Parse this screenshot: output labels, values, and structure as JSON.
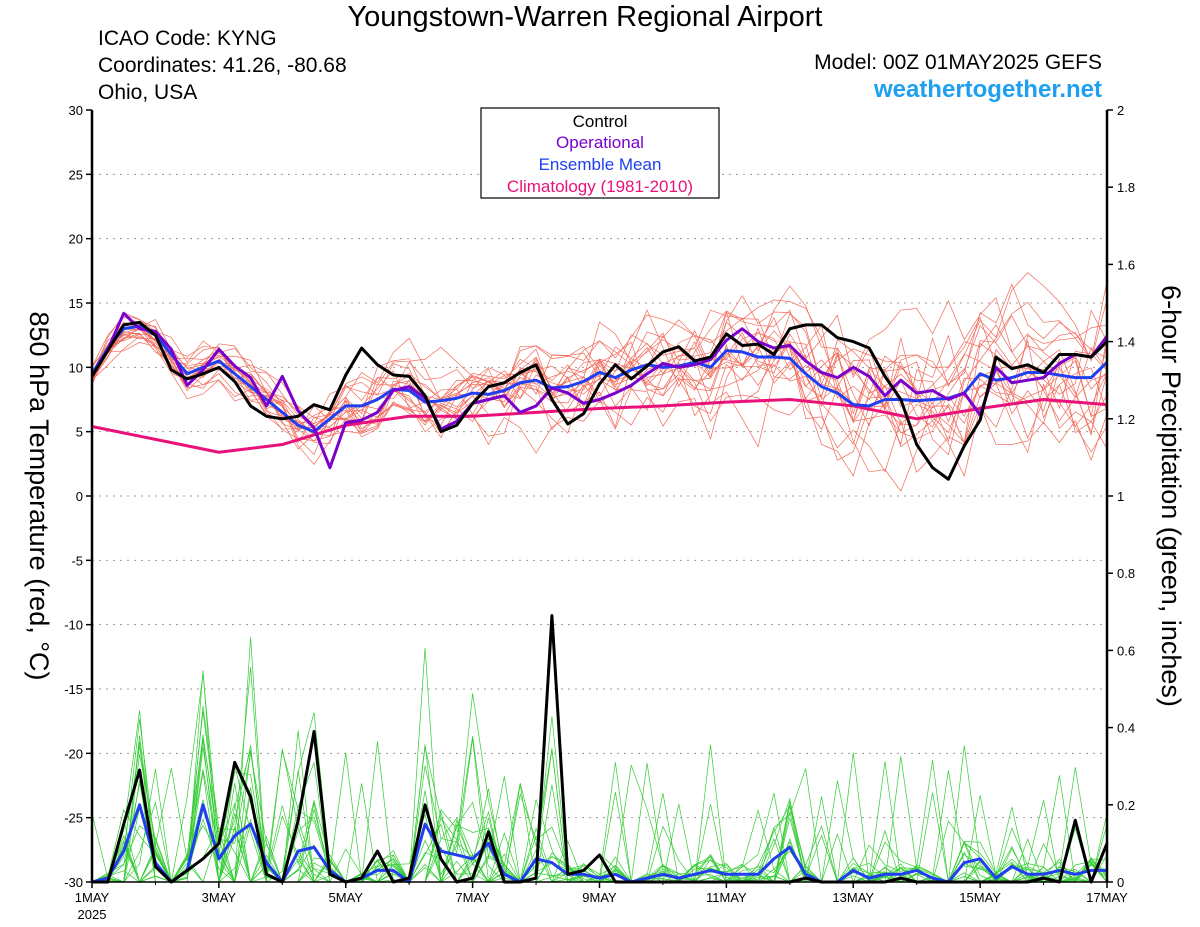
{
  "header": {
    "title": "Youngstown-Warren Regional Airport",
    "icao": "ICAO Code: KYNG",
    "coordinates": "Coordinates: 41.26, -80.68",
    "region": "Ohio, USA",
    "model": "Model: 00Z 01MAY2025 GEFS",
    "site": "weathertogether.net"
  },
  "colors": {
    "control": "#000000",
    "operational": "#7a00cc",
    "ensemble_mean": "#1f3ff0",
    "climatology": "#e8127a",
    "members_temp": "#f26a5a",
    "members_precip": "#33cc33",
    "site": "#1e9ff0"
  },
  "chart_data": {
    "type": "line",
    "left_axis": {
      "label": "850 hPa Temperature (red, °C)",
      "range": [
        -30,
        30
      ],
      "ticks": [
        -30,
        -25,
        -20,
        -15,
        -10,
        -5,
        0,
        5,
        10,
        15,
        20,
        25,
        30
      ]
    },
    "right_axis": {
      "label": "6-hour Precipitation (green, inches)",
      "range": [
        0,
        2
      ],
      "ticks": [
        "0",
        "0.2",
        "0.4",
        "0.6",
        "0.8",
        "1",
        "1.2",
        "1.4",
        "1.6",
        "1.8",
        "2"
      ]
    },
    "x_axis": {
      "range_days": [
        0,
        16
      ],
      "tick_days": [
        0,
        2,
        4,
        6,
        8,
        10,
        12,
        14,
        16
      ],
      "tick_labels": [
        "1MAY",
        "3MAY",
        "5MAY",
        "7MAY",
        "9MAY",
        "11MAY",
        "13MAY",
        "15MAY",
        "17MAY"
      ],
      "year_label": "2025"
    },
    "grid": true,
    "legend": {
      "placement": "top-center",
      "entries": [
        "Control",
        "Operational",
        "Ensemble Mean",
        "Climatology (1981-2010)"
      ]
    },
    "temperature_series": [
      {
        "name": "Control",
        "x": [
          0,
          0.25,
          0.5,
          0.75,
          1,
          1.25,
          1.5,
          1.75,
          2,
          2.25,
          2.5,
          2.75,
          3,
          3.25,
          3.5,
          3.75,
          4,
          4.25,
          4.5,
          4.75,
          5,
          5.25,
          5.5,
          5.75,
          6,
          6.25,
          6.5,
          6.75,
          7,
          7.25,
          7.5,
          7.75,
          8,
          8.25,
          8.5,
          8.75,
          9,
          9.25,
          9.5,
          9.75,
          10,
          10.25,
          10.5,
          10.75,
          11,
          11.25,
          11.5,
          11.75,
          12,
          12.25,
          12.5,
          12.75,
          13,
          13.25,
          13.5,
          13.75,
          14,
          14.25,
          14.5,
          14.75,
          15,
          15.25,
          15.5,
          15.75,
          16
        ],
        "values": [
          9.3,
          11.3,
          13.3,
          13.5,
          12.5,
          9.8,
          9.1,
          9.5,
          10.0,
          8.9,
          7.0,
          6.2,
          6.0,
          6.2,
          7.1,
          6.7,
          9.4,
          11.5,
          10.2,
          9.4,
          9.3,
          7.8,
          5.0,
          5.5,
          7.2,
          8.5,
          8.8,
          9.6,
          10.2,
          7.5,
          5.6,
          6.4,
          8.7,
          10.2,
          9.1,
          10.1,
          11.2,
          11.6,
          10.5,
          10.8,
          12.6,
          11.7,
          11.8,
          11.0,
          13.0,
          13.3,
          13.3,
          12.3,
          12.0,
          11.5,
          9.3,
          7.5,
          4.0,
          2.2,
          1.3,
          3.9,
          5.9,
          10.8,
          9.9,
          10.2,
          9.6,
          11.0,
          11.0,
          10.8,
          12.0
        ]
      },
      {
        "name": "Operational",
        "x": [
          0,
          0.25,
          0.5,
          0.75,
          1,
          1.25,
          1.5,
          1.75,
          2,
          2.25,
          2.5,
          2.75,
          3,
          3.25,
          3.5,
          3.75,
          4,
          4.25,
          4.5,
          4.75,
          5,
          5.25,
          5.5,
          5.75,
          6,
          6.25,
          6.5,
          6.75,
          7,
          7.25,
          7.5,
          7.75,
          8,
          8.25,
          8.5,
          8.75,
          9,
          9.25,
          9.5,
          9.75,
          10,
          10.25,
          10.5,
          10.75,
          11,
          11.25,
          11.5,
          11.75,
          12,
          12.25,
          12.5,
          12.75,
          13,
          13.25,
          13.5,
          13.75,
          14,
          14.25,
          14.5,
          14.75,
          15,
          15.25,
          15.5,
          15.75,
          16
        ],
        "values": [
          9.3,
          11.4,
          14.2,
          13.0,
          12.8,
          11.4,
          8.6,
          9.8,
          11.4,
          10.1,
          9.2,
          7.0,
          9.3,
          6.6,
          5.3,
          2.2,
          5.7,
          5.9,
          6.5,
          8.2,
          8.5,
          7.6,
          5.2,
          5.8,
          7.2,
          7.5,
          7.8,
          6.5,
          7.0,
          8.4,
          8.0,
          7.2,
          7.5,
          8.0,
          8.6,
          9.5,
          10.3,
          10.0,
          10.2,
          10.6,
          12.1,
          13.0,
          12.0,
          11.5,
          11.7,
          10.5,
          9.6,
          9.2,
          10.0,
          9.3,
          7.8,
          9.0,
          8.0,
          8.2,
          7.5,
          8.0,
          6.3,
          10.0,
          8.8,
          9.0,
          9.2,
          10.3,
          11.0,
          10.8,
          12.4
        ]
      },
      {
        "name": "Ensemble Mean",
        "x": [
          0,
          0.25,
          0.5,
          0.75,
          1,
          1.25,
          1.5,
          1.75,
          2,
          2.25,
          2.5,
          2.75,
          3,
          3.25,
          3.5,
          3.75,
          4,
          4.25,
          4.5,
          4.75,
          5,
          5.25,
          5.5,
          5.75,
          6,
          6.25,
          6.5,
          6.75,
          7,
          7.25,
          7.5,
          7.75,
          8,
          8.25,
          8.5,
          8.75,
          9,
          9.25,
          9.5,
          9.75,
          10,
          10.25,
          10.5,
          10.75,
          11,
          11.25,
          11.5,
          11.75,
          12,
          12.25,
          12.5,
          12.75,
          13,
          13.25,
          13.5,
          13.75,
          14,
          14.25,
          14.5,
          14.75,
          15,
          15.25,
          15.5,
          15.75,
          16
        ],
        "values": [
          9.5,
          11.5,
          13.0,
          13.2,
          12.5,
          11.0,
          9.5,
          10.0,
          10.5,
          9.5,
          8.5,
          7.5,
          6.5,
          5.5,
          5.0,
          6.0,
          7.0,
          7.0,
          7.5,
          8.3,
          8.2,
          7.3,
          7.4,
          7.6,
          8.0,
          7.9,
          8.2,
          8.8,
          9.0,
          8.4,
          8.5,
          8.9,
          9.6,
          9.2,
          9.8,
          10.2,
          10.0,
          10.1,
          10.4,
          10.0,
          11.3,
          11.2,
          10.8,
          10.8,
          10.7,
          9.5,
          8.5,
          8.0,
          7.1,
          7.0,
          7.5,
          7.5,
          7.4,
          7.5,
          7.6,
          8.0,
          9.5,
          9.0,
          9.2,
          9.6,
          9.6,
          9.4,
          9.2,
          9.2,
          10.4
        ]
      },
      {
        "name": "Climatology (1981-2010)",
        "x": [
          0,
          1,
          2,
          3,
          4,
          5,
          6,
          7,
          8,
          9,
          10,
          11,
          12,
          13,
          14,
          15,
          16
        ],
        "values": [
          5.4,
          4.4,
          3.4,
          4.0,
          5.5,
          6.2,
          6.2,
          6.5,
          6.8,
          7.0,
          7.3,
          7.5,
          7.0,
          6.0,
          6.8,
          7.5,
          7.1
        ]
      }
    ],
    "precipitation_series": [
      {
        "name": "Control",
        "x": [
          0,
          0.25,
          0.5,
          0.75,
          1,
          1.25,
          1.5,
          1.75,
          2,
          2.25,
          2.5,
          2.75,
          3,
          3.25,
          3.5,
          3.75,
          4,
          4.25,
          4.5,
          4.75,
          5,
          5.25,
          5.5,
          5.75,
          6,
          6.25,
          6.5,
          6.75,
          7,
          7.25,
          7.5,
          7.75,
          8,
          8.25,
          8.5,
          8.75,
          9,
          9.25,
          9.5,
          9.75,
          10,
          10.25,
          10.5,
          10.75,
          11,
          11.25,
          11.5,
          11.75,
          12,
          12.25,
          12.5,
          12.75,
          13,
          13.25,
          13.5,
          13.75,
          14,
          14.25,
          14.5,
          14.75,
          15,
          15.25,
          15.5,
          15.75,
          16
        ],
        "values": [
          0.0,
          0.0,
          0.15,
          0.29,
          0.04,
          0.0,
          0.03,
          0.06,
          0.1,
          0.31,
          0.22,
          0.02,
          0.0,
          0.16,
          0.39,
          0.02,
          0.0,
          0.01,
          0.08,
          0.0,
          0.01,
          0.2,
          0.06,
          0.0,
          0.01,
          0.13,
          0.0,
          0.0,
          0.01,
          0.69,
          0.02,
          0.03,
          0.07,
          0.0,
          0.0,
          0.0,
          0.0,
          0.0,
          0.0,
          0.0,
          0.0,
          0.0,
          0.0,
          0.0,
          0.0,
          0.01,
          0.0,
          0.0,
          0.0,
          0.0,
          0.0,
          0.01,
          0.0,
          0.0,
          0.0,
          0.0,
          0.0,
          0.0,
          0.0,
          0.0,
          0.01,
          0.0,
          0.16,
          0.0,
          0.1
        ]
      },
      {
        "name": "Ensemble Mean",
        "x": [
          0,
          0.25,
          0.5,
          0.75,
          1,
          1.25,
          1.5,
          1.75,
          2,
          2.25,
          2.5,
          2.75,
          3,
          3.25,
          3.5,
          3.75,
          4,
          4.25,
          4.5,
          4.75,
          5,
          5.25,
          5.5,
          5.75,
          6,
          6.25,
          6.5,
          6.75,
          7,
          7.25,
          7.5,
          7.75,
          8,
          8.25,
          8.5,
          8.75,
          9,
          9.25,
          9.5,
          9.75,
          10,
          10.25,
          10.5,
          10.75,
          11,
          11.25,
          11.5,
          11.75,
          12,
          12.25,
          12.5,
          12.75,
          13,
          13.25,
          13.5,
          13.75,
          14,
          14.25,
          14.5,
          14.75,
          15,
          15.25,
          15.5,
          15.75,
          16
        ],
        "values": [
          0.0,
          0.01,
          0.08,
          0.2,
          0.05,
          0.0,
          0.03,
          0.2,
          0.06,
          0.12,
          0.15,
          0.05,
          0.0,
          0.08,
          0.09,
          0.03,
          0.0,
          0.01,
          0.03,
          0.03,
          0.0,
          0.15,
          0.08,
          0.07,
          0.06,
          0.1,
          0.02,
          0.0,
          0.06,
          0.05,
          0.02,
          0.02,
          0.01,
          0.02,
          0.0,
          0.01,
          0.02,
          0.01,
          0.02,
          0.03,
          0.02,
          0.02,
          0.02,
          0.06,
          0.09,
          0.02,
          0.0,
          0.0,
          0.03,
          0.01,
          0.02,
          0.02,
          0.03,
          0.01,
          0.0,
          0.05,
          0.06,
          0.01,
          0.04,
          0.02,
          0.02,
          0.03,
          0.02,
          0.03,
          0.03
        ]
      }
    ]
  }
}
